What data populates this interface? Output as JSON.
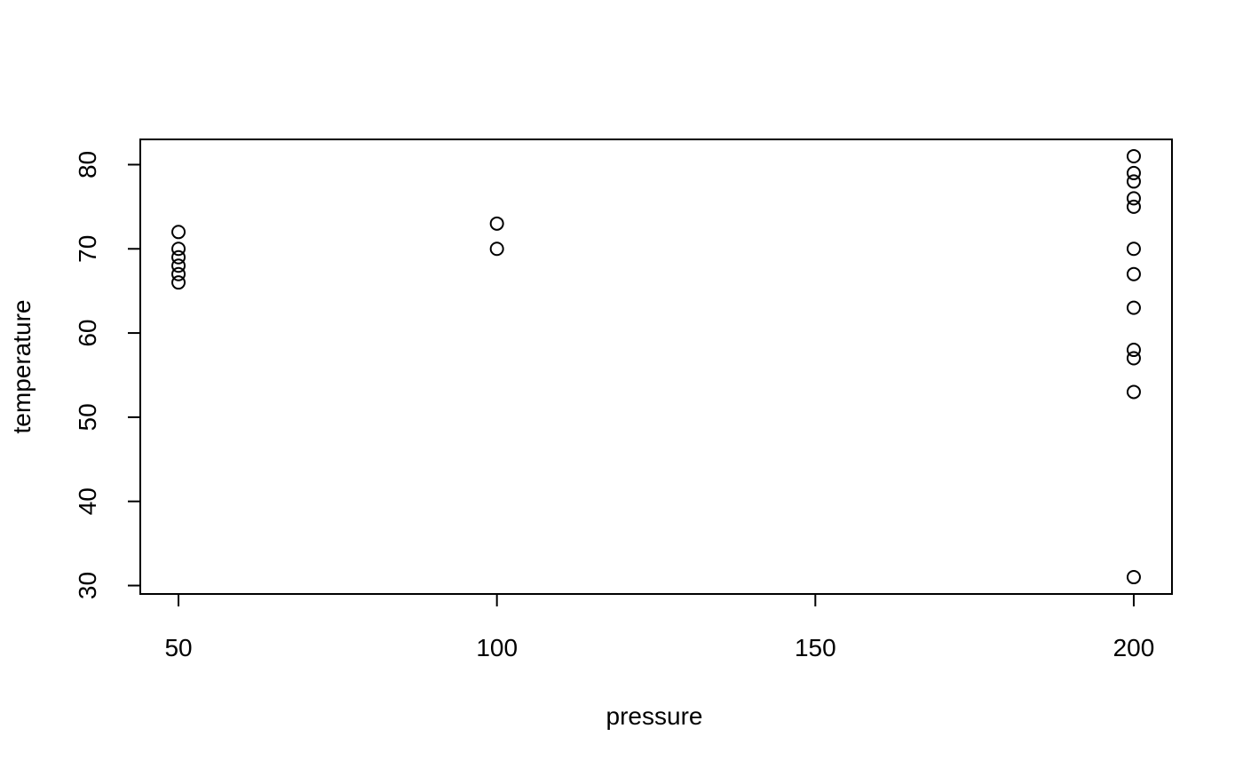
{
  "chart_data": {
    "type": "scatter",
    "title": "",
    "xlabel": "pressure",
    "ylabel": "temperature",
    "xlim": [
      44,
      206
    ],
    "ylim": [
      29,
      83
    ],
    "xticks": [
      50,
      100,
      150,
      200
    ],
    "yticks": [
      30,
      40,
      50,
      60,
      70,
      80
    ],
    "marker": "open-circle",
    "color": "#000000",
    "grid": false,
    "legend": "none",
    "points": [
      {
        "x": 50,
        "y": 66
      },
      {
        "x": 50,
        "y": 67
      },
      {
        "x": 50,
        "y": 68
      },
      {
        "x": 50,
        "y": 69
      },
      {
        "x": 50,
        "y": 70
      },
      {
        "x": 50,
        "y": 72
      },
      {
        "x": 100,
        "y": 70
      },
      {
        "x": 100,
        "y": 73
      },
      {
        "x": 200,
        "y": 31
      },
      {
        "x": 200,
        "y": 53
      },
      {
        "x": 200,
        "y": 57
      },
      {
        "x": 200,
        "y": 58
      },
      {
        "x": 200,
        "y": 63
      },
      {
        "x": 200,
        "y": 67
      },
      {
        "x": 200,
        "y": 70
      },
      {
        "x": 200,
        "y": 75
      },
      {
        "x": 200,
        "y": 76
      },
      {
        "x": 200,
        "y": 78
      },
      {
        "x": 200,
        "y": 79
      },
      {
        "x": 200,
        "y": 81
      }
    ]
  }
}
